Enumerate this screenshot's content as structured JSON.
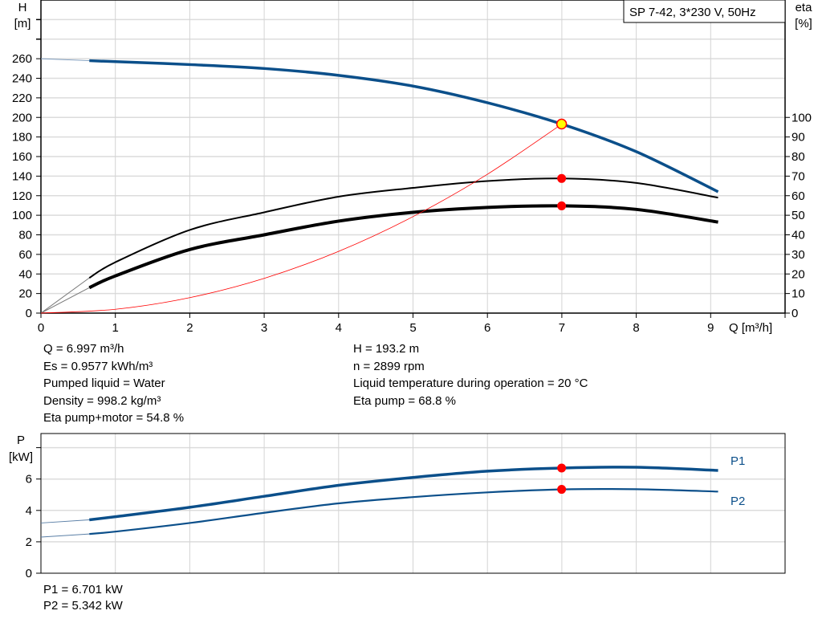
{
  "chart_data": [
    {
      "type": "line",
      "title": "SP 7-42, 3*230 V, 50Hz",
      "xlabel": "Q [m³/h]",
      "ylabel": [
        "H",
        "[m]"
      ],
      "y2label": [
        "eta",
        "[%]"
      ],
      "xlim": [
        0,
        10
      ],
      "ylim": [
        0,
        320
      ],
      "y2lim": [
        0,
        160
      ],
      "grid": true,
      "x_ticks": [
        0,
        1,
        2,
        3,
        4,
        5,
        6,
        7,
        8,
        9
      ],
      "y_ticks": [
        0,
        20,
        40,
        60,
        80,
        100,
        120,
        140,
        160,
        180,
        200,
        220,
        240,
        260
      ],
      "y2_ticks": [
        0,
        10,
        20,
        30,
        40,
        50,
        60,
        70,
        80,
        90,
        100
      ],
      "series": [
        {
          "id": "H",
          "axis": "y",
          "color": "#0b4f8a",
          "x": [
            0.65,
            1,
            2,
            3,
            4,
            5,
            6,
            7,
            8,
            9.1
          ],
          "values": [
            258,
            257,
            254,
            250,
            243,
            232,
            215,
            193.2,
            165,
            124
          ],
          "extrapolated": {
            "x": [
              0,
              0.65
            ],
            "values": [
              260,
              258
            ]
          }
        },
        {
          "id": "eta_pump",
          "axis": "y2",
          "color": "#000000",
          "x": [
            0.65,
            1,
            2,
            3,
            4,
            5,
            6,
            7,
            8,
            9.1
          ],
          "values": [
            18,
            26,
            42.5,
            51.5,
            59.5,
            64,
            67.5,
            68.8,
            66.5,
            59
          ],
          "extrapolated": {
            "x": [
              0,
              0.65
            ],
            "values": [
              0,
              18
            ]
          }
        },
        {
          "id": "eta_pump_motor",
          "axis": "y2",
          "color": "#000000",
          "x": [
            0.65,
            1,
            2,
            3,
            4,
            5,
            6,
            7,
            8,
            9.1
          ],
          "values": [
            13,
            19,
            32.5,
            40,
            47,
            51.5,
            54,
            54.8,
            53,
            46.5
          ],
          "extrapolated": {
            "x": [
              0,
              0.65
            ],
            "values": [
              0,
              13
            ]
          }
        },
        {
          "id": "system_curve",
          "axis": "y",
          "color": "#ff0000",
          "x": [
            0,
            1,
            2,
            3,
            4,
            5,
            6,
            7
          ],
          "values": [
            0,
            3.9,
            15.8,
            35.5,
            63.1,
            98.6,
            141.9,
            193.2
          ]
        }
      ],
      "duty_point": {
        "Q": 6.997,
        "H": 193.2,
        "eta_pump": 68.8,
        "eta_pump_motor": 54.8
      }
    },
    {
      "type": "line",
      "ylabel": [
        "P",
        "[kW]"
      ],
      "xlim": [
        0,
        10
      ],
      "ylim": [
        0,
        8.9
      ],
      "grid": true,
      "y_ticks": [
        0,
        2,
        4,
        6
      ],
      "series": [
        {
          "name": "P1",
          "color": "#0b4f8a",
          "x": [
            0.65,
            1,
            2,
            3,
            4,
            5,
            6,
            7,
            8,
            9.1
          ],
          "values": [
            3.4,
            3.6,
            4.2,
            4.9,
            5.6,
            6.1,
            6.5,
            6.7,
            6.75,
            6.55
          ],
          "extrapolated": {
            "x": [
              0,
              0.65
            ],
            "values": [
              3.2,
              3.4
            ]
          }
        },
        {
          "name": "P2",
          "color": "#0b4f8a",
          "x": [
            0.65,
            1,
            2,
            3,
            4,
            5,
            6,
            7,
            8,
            9.1
          ],
          "values": [
            2.5,
            2.65,
            3.2,
            3.85,
            4.45,
            4.85,
            5.15,
            5.34,
            5.35,
            5.2
          ],
          "extrapolated": {
            "x": [
              0,
              0.65
            ],
            "values": [
              2.3,
              2.5
            ]
          }
        }
      ],
      "duty_point": {
        "Q": 6.997,
        "P1": 6.701,
        "P2": 5.342
      }
    }
  ],
  "info_left": [
    "Q = 6.997 m³/h",
    "Es = 0.9577 kWh/m³",
    "Pumped liquid = Water",
    "Density = 998.2 kg/m³",
    "Eta pump+motor = 54.8 %"
  ],
  "info_right": [
    "H = 193.2 m",
    "n = 2899 rpm",
    "Liquid temperature during operation = 20 °C",
    "Eta pump = 68.8 %"
  ],
  "power_info": [
    "P1 = 6.701 kW",
    "P2 = 5.342 kW"
  ]
}
